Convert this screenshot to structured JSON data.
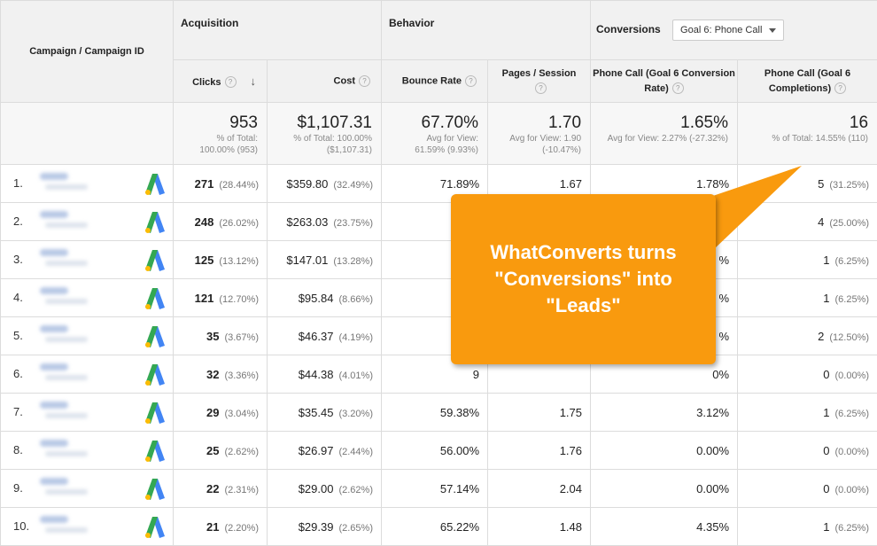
{
  "header": {
    "campaign_col": "Campaign / Campaign ID",
    "acquisition": "Acquisition",
    "behavior": "Behavior",
    "conversions": "Conversions",
    "goal_select": "Goal 6: Phone Call",
    "clicks": "Clicks",
    "cost": "Cost",
    "bounce_rate": "Bounce Rate",
    "pages_session": "Pages / Session",
    "conv_rate": "Phone Call (Goal 6 Conversion Rate)",
    "completions": "Phone Call (Goal 6 Completions)",
    "help_glyph": "?",
    "sort_glyph": "↓"
  },
  "summary": {
    "clicks": "953",
    "clicks_sub": "% of Total: 100.00% (953)",
    "cost": "$1,107.31",
    "cost_sub": "% of Total: 100.00% ($1,107.31)",
    "bounce": "67.70%",
    "bounce_sub": "Avg for View: 61.59% (9.93%)",
    "pages": "1.70",
    "pages_sub": "Avg for View: 1.90 (-10.47%)",
    "conv_rate": "1.65%",
    "conv_rate_sub": "Avg for View: 2.27% (-27.32%)",
    "completions": "16",
    "completions_sub": "% of Total: 14.55% (110)"
  },
  "rows": [
    {
      "idx": "1.",
      "clicks": "271",
      "clicks_pct": "(28.44%)",
      "cost": "$359.80",
      "cost_pct": "(32.49%)",
      "bounce": "71.89%",
      "pages": "1.67",
      "conv": "1.78%",
      "comp": "5",
      "comp_pct": "(31.25%)"
    },
    {
      "idx": "2.",
      "clicks": "248",
      "clicks_pct": "(26.02%)",
      "cost": "$263.03",
      "cost_pct": "(23.75%)",
      "bounce": "5",
      "pages": "",
      "conv": "",
      "comp": "4",
      "comp_pct": "(25.00%)"
    },
    {
      "idx": "3.",
      "clicks": "125",
      "clicks_pct": "(13.12%)",
      "cost": "$147.01",
      "cost_pct": "(13.28%)",
      "bounce": "7",
      "pages": "",
      "conv": "%",
      "comp": "1",
      "comp_pct": "(6.25%)"
    },
    {
      "idx": "4.",
      "clicks": "121",
      "clicks_pct": "(12.70%)",
      "cost": "$95.84",
      "cost_pct": "(8.66%)",
      "bounce": "8",
      "pages": "",
      "conv": "%",
      "comp": "1",
      "comp_pct": "(6.25%)"
    },
    {
      "idx": "5.",
      "clicks": "35",
      "clicks_pct": "(3.67%)",
      "cost": "$46.37",
      "cost_pct": "(4.19%)",
      "bounce": "8",
      "pages": "",
      "conv": "%",
      "comp": "2",
      "comp_pct": "(12.50%)"
    },
    {
      "idx": "6.",
      "clicks": "32",
      "clicks_pct": "(3.36%)",
      "cost": "$44.38",
      "cost_pct": "(4.01%)",
      "bounce": "9",
      "pages": "",
      "conv": "0%",
      "comp": "0",
      "comp_pct": "(0.00%)"
    },
    {
      "idx": "7.",
      "clicks": "29",
      "clicks_pct": "(3.04%)",
      "cost": "$35.45",
      "cost_pct": "(3.20%)",
      "bounce": "59.38%",
      "pages": "1.75",
      "conv": "3.12%",
      "comp": "1",
      "comp_pct": "(6.25%)"
    },
    {
      "idx": "8.",
      "clicks": "25",
      "clicks_pct": "(2.62%)",
      "cost": "$26.97",
      "cost_pct": "(2.44%)",
      "bounce": "56.00%",
      "pages": "1.76",
      "conv": "0.00%",
      "comp": "0",
      "comp_pct": "(0.00%)"
    },
    {
      "idx": "9.",
      "clicks": "22",
      "clicks_pct": "(2.31%)",
      "cost": "$29.00",
      "cost_pct": "(2.62%)",
      "bounce": "57.14%",
      "pages": "2.04",
      "conv": "0.00%",
      "comp": "0",
      "comp_pct": "(0.00%)"
    },
    {
      "idx": "10.",
      "clicks": "21",
      "clicks_pct": "(2.20%)",
      "cost": "$29.39",
      "cost_pct": "(2.65%)",
      "bounce": "65.22%",
      "pages": "1.48",
      "conv": "4.35%",
      "comp": "1",
      "comp_pct": "(6.25%)"
    }
  ],
  "callout": {
    "line1": "WhatConverts turns",
    "line2": "\"Conversions\" into",
    "line3": "\"Leads\""
  },
  "colors": {
    "callout": "#f99a0e",
    "header_bg": "#f1f1f1",
    "adwords_blue": "#4285f4",
    "adwords_green": "#34a853"
  }
}
